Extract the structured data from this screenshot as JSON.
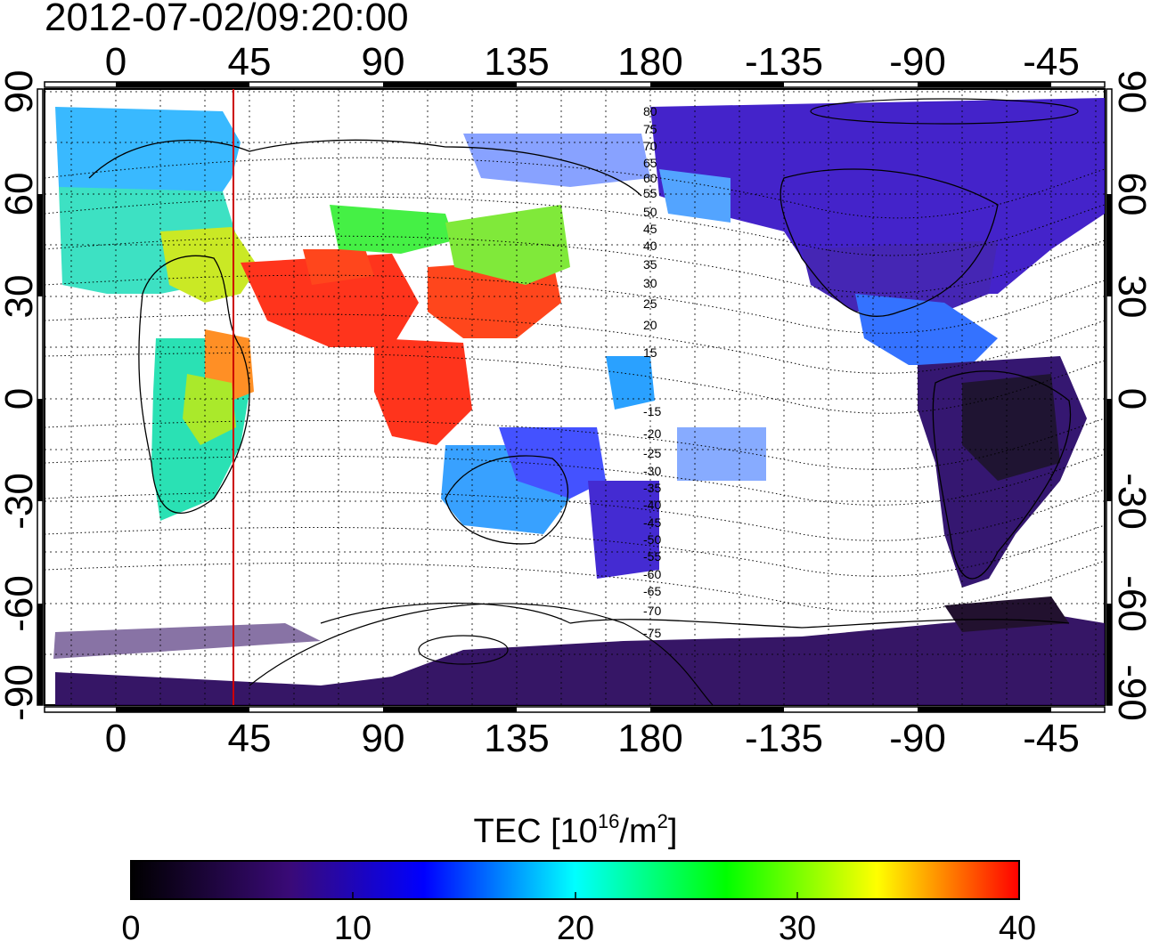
{
  "title": "2012-07-02/09:20:00",
  "colorbar": {
    "label_main": "TEC  [10",
    "label_sup1": "16",
    "label_mid": "/m",
    "label_sup2": "2",
    "label_end": "]",
    "range": [
      0,
      40
    ],
    "ticks": [
      "0",
      "10",
      "20",
      "30",
      "40"
    ],
    "stops": [
      "#000000",
      "#3a0a78",
      "#0000ff",
      "#00ffff",
      "#00ff00",
      "#ffff00",
      "#ff0000"
    ]
  },
  "map": {
    "top_lon_ticks": [
      "0",
      "45",
      "90",
      "135",
      "180",
      "-135",
      "-90",
      "-45"
    ],
    "bottom_lon_ticks": [
      "0",
      "45",
      "90",
      "135",
      "180",
      "-135",
      "-90",
      "-45"
    ],
    "left_lat_ticks": [
      "90",
      "60",
      "30",
      "0",
      "-30",
      "-60",
      "-90"
    ],
    "right_lat_ticks": [
      "90",
      "60",
      "30",
      "0",
      "-30",
      "-60",
      "-90"
    ],
    "contour_labels": [
      "80",
      "75",
      "70",
      "65",
      "60",
      "55",
      "50",
      "45",
      "40",
      "35",
      "30",
      "25",
      "20",
      "15",
      "-15",
      "-20",
      "-25",
      "-30",
      "-35",
      "-40",
      "-45",
      "-50",
      "-55",
      "-60",
      "-65",
      "-70",
      "-75"
    ],
    "terminator_longitude": 40,
    "terminator_color": "#cc0000"
  }
}
